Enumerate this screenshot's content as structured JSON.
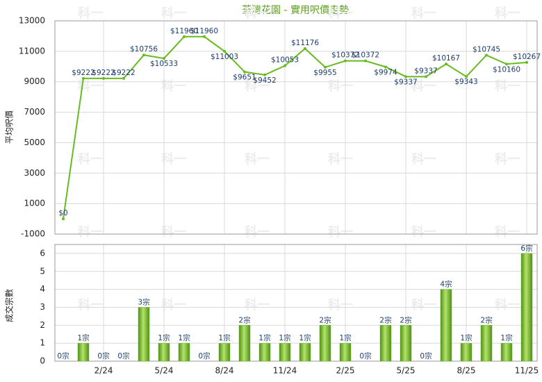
{
  "watermark": "科一",
  "chart_data": [
    {
      "type": "line",
      "title": "荃灣花園 - 實用呎價走勢",
      "ylabel": "平均呎價",
      "color": "#66bb1e",
      "grid": true,
      "ylim": [
        -1000,
        13000
      ],
      "yticks": [
        -1000,
        1000,
        3000,
        5000,
        7000,
        9000,
        11000,
        13000
      ],
      "values": [
        0,
        9222,
        9222,
        9222,
        10756,
        10533,
        11960,
        11960,
        11003,
        9651,
        9452,
        10053,
        11176,
        9955,
        10372,
        10372,
        9974,
        9337,
        9337,
        10167,
        9343,
        10745,
        10160,
        10267
      ],
      "value_labels": [
        "$0",
        "$9222",
        "$9222",
        "$9222",
        "$10756",
        "$10533",
        "$11960",
        "$11960",
        "$11003",
        "$9651",
        "$9452",
        "$10053",
        "$11176",
        "$9955",
        "$10372",
        "$10372",
        "$9974",
        "$9337",
        "$9337",
        "$10167",
        "$9343",
        "$10745",
        "$10160",
        "$10267"
      ]
    },
    {
      "type": "bar",
      "ylabel": "成交宗數",
      "color": "#6ab82a",
      "grid": true,
      "ylim": [
        0,
        6.5
      ],
      "yticks": [
        0,
        1,
        2,
        3,
        4,
        5,
        6
      ],
      "categories": [
        null,
        null,
        "2/24",
        null,
        null,
        "5/24",
        null,
        null,
        "8/24",
        null,
        null,
        "11/24",
        null,
        null,
        "2/25",
        null,
        null,
        "5/25",
        null,
        null,
        "8/25",
        null,
        null,
        "11/25"
      ],
      "values": [
        0,
        1,
        0,
        0,
        3,
        1,
        1,
        0,
        1,
        2,
        1,
        1,
        1,
        2,
        1,
        0,
        2,
        2,
        0,
        4,
        1,
        2,
        1,
        6
      ],
      "value_labels": [
        "0宗",
        "1宗",
        "0宗",
        "0宗",
        "3宗",
        "1宗",
        "1宗",
        "0宗",
        "1宗",
        "2宗",
        "1宗",
        "1宗",
        "1宗",
        "2宗",
        "1宗",
        "0宗",
        "2宗",
        "2宗",
        "0宗",
        "4宗",
        "1宗",
        "2宗",
        "1宗",
        "6宗"
      ]
    }
  ]
}
